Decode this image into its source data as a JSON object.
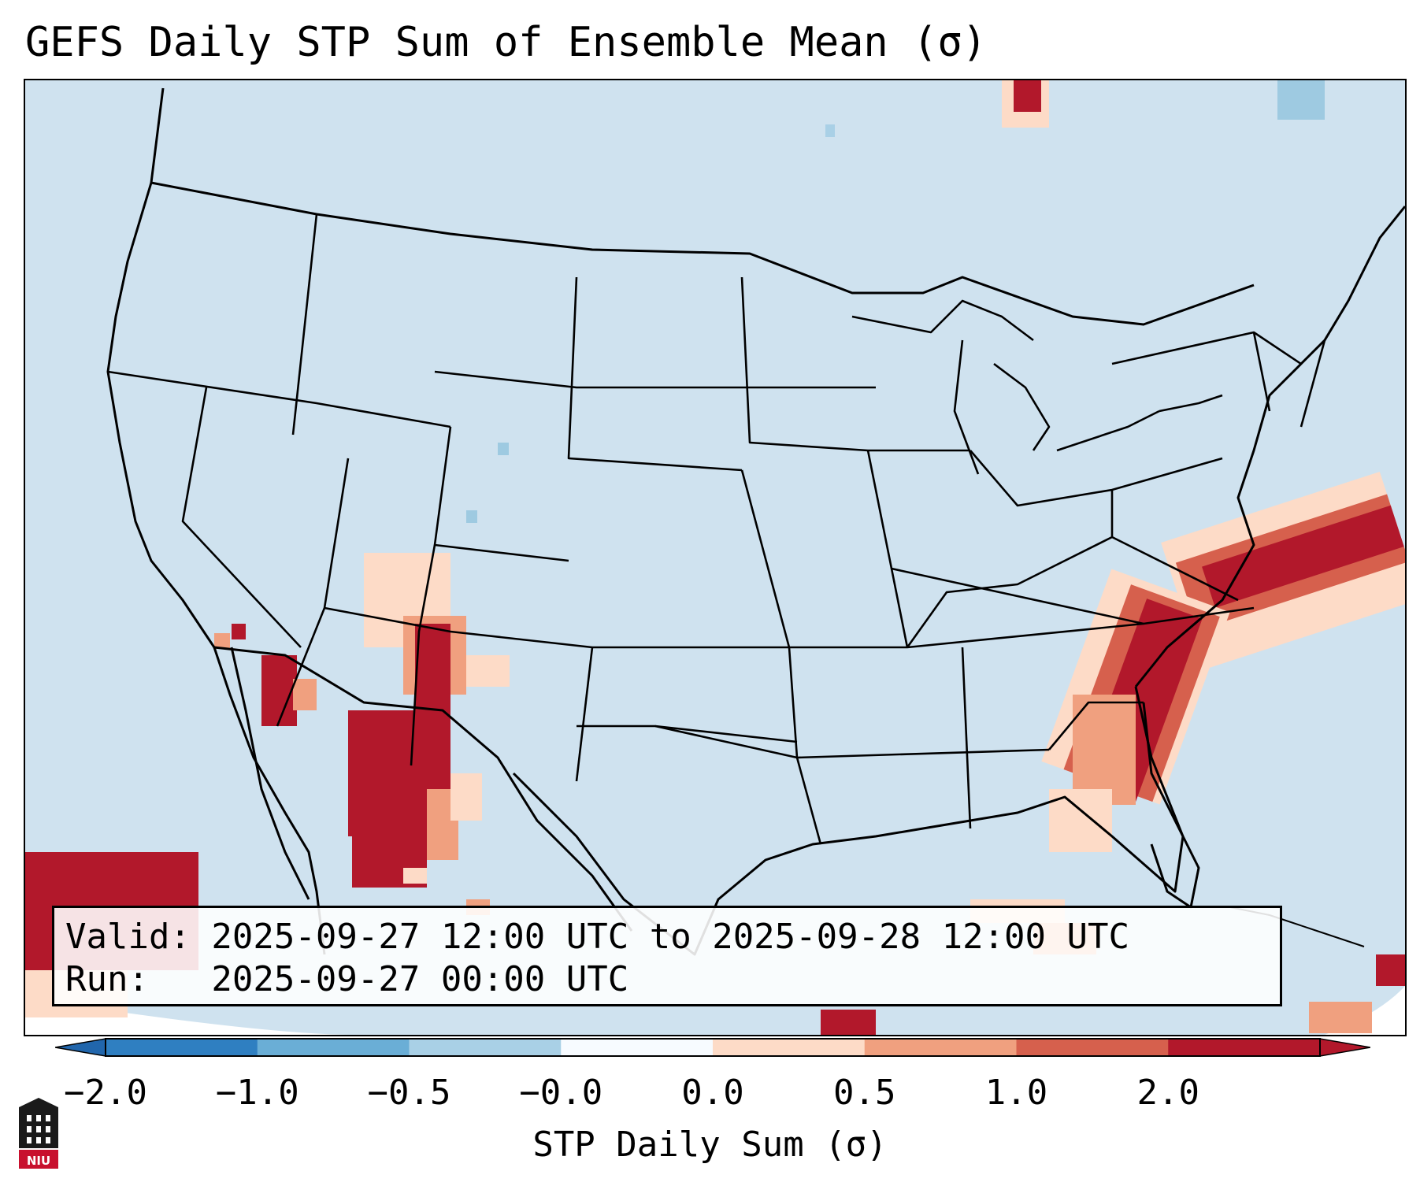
{
  "title": "GEFS Daily STP Sum of Ensemble Mean (σ)",
  "map": {
    "region": "Continental United States",
    "base_color": "#cfe2ef",
    "boundary_color": "#000000",
    "features": [
      "state-borders",
      "country-borders",
      "coastlines",
      "stp-shading"
    ]
  },
  "info": {
    "valid_line": "Valid: 2025-09-27 12:00 UTC to 2025-09-28 12:00 UTC",
    "run_line": "Run:   2025-09-27 00:00 UTC"
  },
  "colorbar": {
    "label": "STP Daily Sum (σ)",
    "tick_labels": [
      "−2.0",
      "−1.0",
      "−0.5",
      "−0.0",
      "0.0",
      "0.5",
      "1.0",
      "2.0"
    ],
    "colors": [
      "#2f7fc1",
      "#6aaed6",
      "#a9d0e6",
      "#f7fbff",
      "#fddbc7",
      "#f0a07f",
      "#d6604d",
      "#b2182b"
    ],
    "under_color": "#2166ac",
    "over_color": "#b2182b"
  },
  "logo": {
    "text": "NIU",
    "name": "northern-illinois-university-logo"
  }
}
